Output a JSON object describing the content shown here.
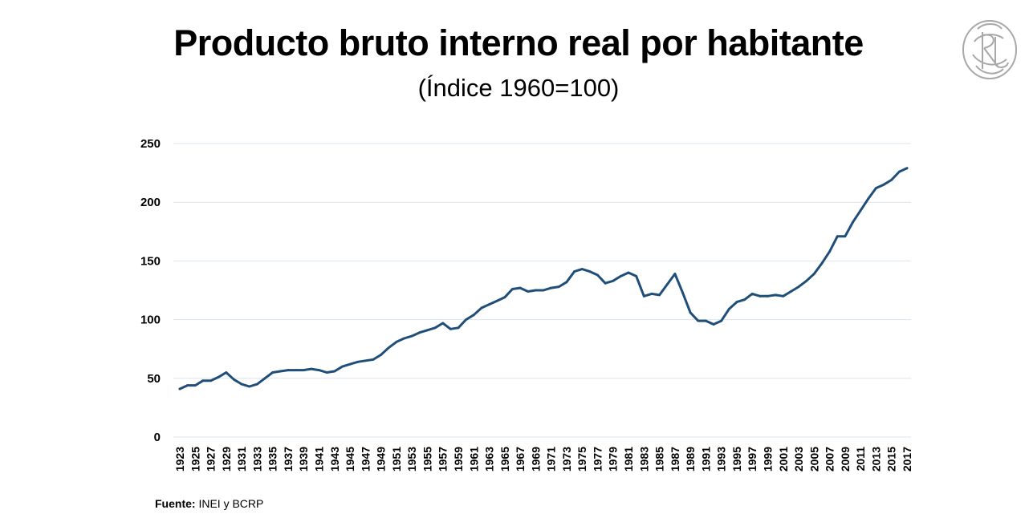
{
  "header": {
    "title": "Producto bruto interno real por habitante",
    "subtitle": "(Índice 1960=100)"
  },
  "source": {
    "label": "Fuente:",
    "text": "INEI y BCRP"
  },
  "logo": {
    "icon": "bcrp-monogram-seal"
  },
  "colors": {
    "line": "#1f4e79",
    "grid": "#d9e4ee"
  },
  "chart_data": {
    "type": "line",
    "title": "Producto bruto interno real por habitante",
    "subtitle": "(Índice 1960=100)",
    "xlabel": "",
    "ylabel": "",
    "ylim": [
      0,
      250
    ],
    "yticks": [
      0,
      50,
      100,
      150,
      200,
      250
    ],
    "grid": true,
    "x": [
      1923,
      1924,
      1925,
      1926,
      1927,
      1928,
      1929,
      1930,
      1931,
      1932,
      1933,
      1934,
      1935,
      1936,
      1937,
      1938,
      1939,
      1940,
      1941,
      1942,
      1943,
      1944,
      1945,
      1946,
      1947,
      1948,
      1949,
      1950,
      1951,
      1952,
      1953,
      1954,
      1955,
      1956,
      1957,
      1958,
      1959,
      1960,
      1961,
      1962,
      1963,
      1964,
      1965,
      1966,
      1967,
      1968,
      1969,
      1970,
      1971,
      1972,
      1973,
      1974,
      1975,
      1976,
      1977,
      1978,
      1979,
      1980,
      1981,
      1982,
      1983,
      1984,
      1985,
      1986,
      1987,
      1988,
      1989,
      1990,
      1991,
      1992,
      1993,
      1994,
      1995,
      1996,
      1997,
      1998,
      1999,
      2000,
      2001,
      2002,
      2003,
      2004,
      2005,
      2006,
      2007,
      2008,
      2009,
      2010,
      2011,
      2012,
      2013,
      2014,
      2015,
      2016,
      2017
    ],
    "xtick_labels": [
      "1923",
      "1925",
      "1927",
      "1929",
      "1931",
      "1933",
      "1935",
      "1937",
      "1939",
      "1941",
      "1943",
      "1945",
      "1947",
      "1949",
      "1951",
      "1953",
      "1955",
      "1957",
      "1959",
      "1961",
      "1963",
      "1965",
      "1967",
      "1969",
      "1971",
      "1973",
      "1975",
      "1977",
      "1979",
      "1981",
      "1983",
      "1985",
      "1987",
      "1989",
      "1991",
      "1993",
      "1995",
      "1997",
      "1999",
      "2001",
      "2003",
      "2005",
      "2007",
      "2009",
      "2011",
      "2013",
      "2015",
      "2017"
    ],
    "series": [
      {
        "values": [
          41,
          44,
          44,
          48,
          48,
          51,
          55,
          49,
          45,
          43,
          45,
          50,
          55,
          56,
          57,
          57,
          57,
          58,
          57,
          55,
          56,
          60,
          62,
          64,
          65,
          66,
          70,
          76,
          81,
          84,
          86,
          89,
          91,
          93,
          97,
          92,
          93,
          100,
          104,
          110,
          113,
          116,
          119,
          126,
          127,
          124,
          125,
          125,
          127,
          128,
          132,
          141,
          143,
          141,
          138,
          131,
          133,
          137,
          140,
          137,
          120,
          122,
          121,
          130,
          139,
          123,
          106,
          99,
          99,
          96,
          99,
          109,
          115,
          117,
          122,
          120,
          120,
          121,
          120,
          124,
          128,
          133,
          139,
          148,
          158,
          171,
          171,
          183,
          193,
          203,
          212,
          215,
          219,
          226,
          229
        ]
      }
    ]
  }
}
